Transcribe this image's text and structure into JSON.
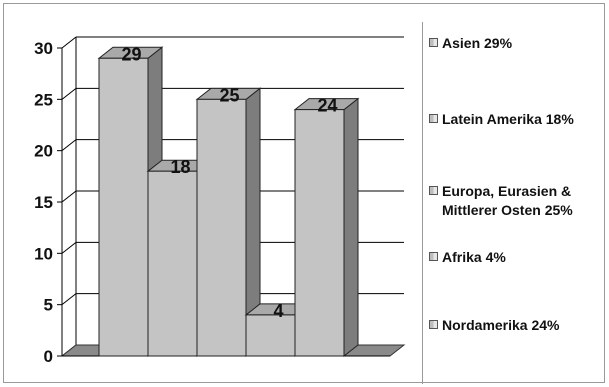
{
  "chart_data": {
    "type": "bar",
    "categories": [
      "Asien",
      "Latein Amerika",
      "Europa, Eurasien & Mittlerer Osten",
      "Afrika",
      "Nordamerika"
    ],
    "values": [
      29,
      18,
      25,
      4,
      24
    ],
    "data_labels": [
      "29",
      "18",
      "25",
      "4",
      "24"
    ],
    "title": "",
    "xlabel": "",
    "ylabel": "",
    "ylim": [
      0,
      30
    ],
    "yticks": [
      0,
      5,
      10,
      15,
      20,
      25,
      30
    ],
    "grid": true,
    "three_d": true,
    "legend_position": "right",
    "legend": [
      {
        "label": "Asien 29%"
      },
      {
        "label": "Latein Amerika 18%"
      },
      {
        "label": "Europa, Eurasien & Mittlerer Osten 25%"
      },
      {
        "label": "Afrika 4%"
      },
      {
        "label": "Nordamerika 24%"
      }
    ],
    "colors": {
      "bar_front": "#c4c4c4",
      "bar_side": "#7d7d7d",
      "bar_top": "#a9a9a9",
      "grid": "#000000",
      "floor": "#8a8a8a"
    }
  }
}
